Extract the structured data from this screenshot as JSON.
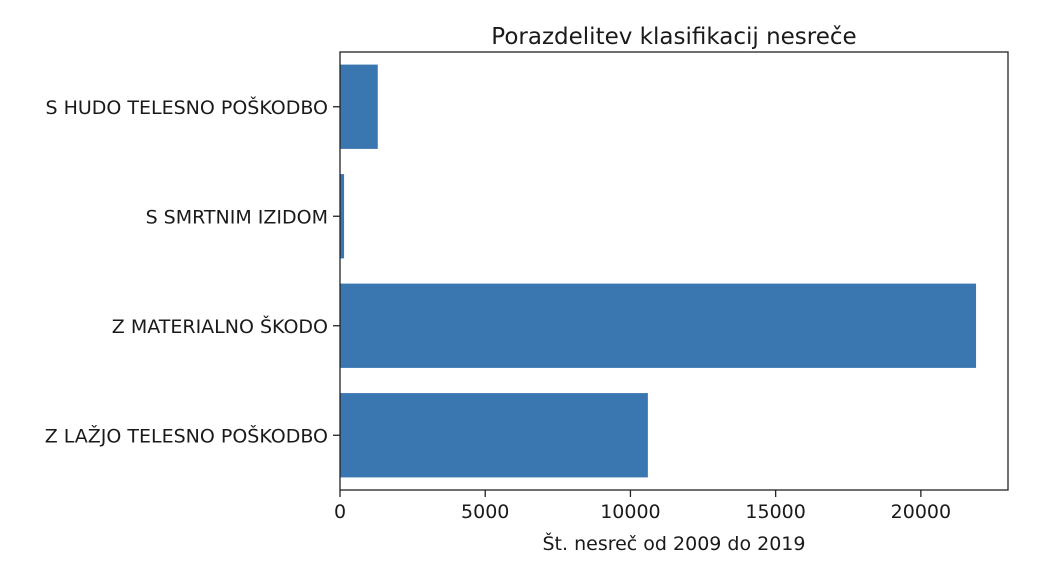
{
  "chart_data": {
    "type": "bar",
    "orientation": "horizontal",
    "title": "Porazdelitev klasifikacij nesreče",
    "xlabel": "Št. nesreč od 2009 do 2019",
    "ylabel": "",
    "categories": [
      "S HUDO TELESNO POŠKODBO",
      "S SMRTNIM IZIDOM",
      "Z MATERIALNO ŠKODO",
      "Z LAŽJO TELESNO POŠKODBO"
    ],
    "values": [
      1300,
      140,
      21900,
      10600
    ],
    "xlim": [
      0,
      23000
    ],
    "xticks": [
      0,
      5000,
      10000,
      15000,
      20000
    ],
    "grid": false,
    "bar_color": "#3a76af"
  }
}
